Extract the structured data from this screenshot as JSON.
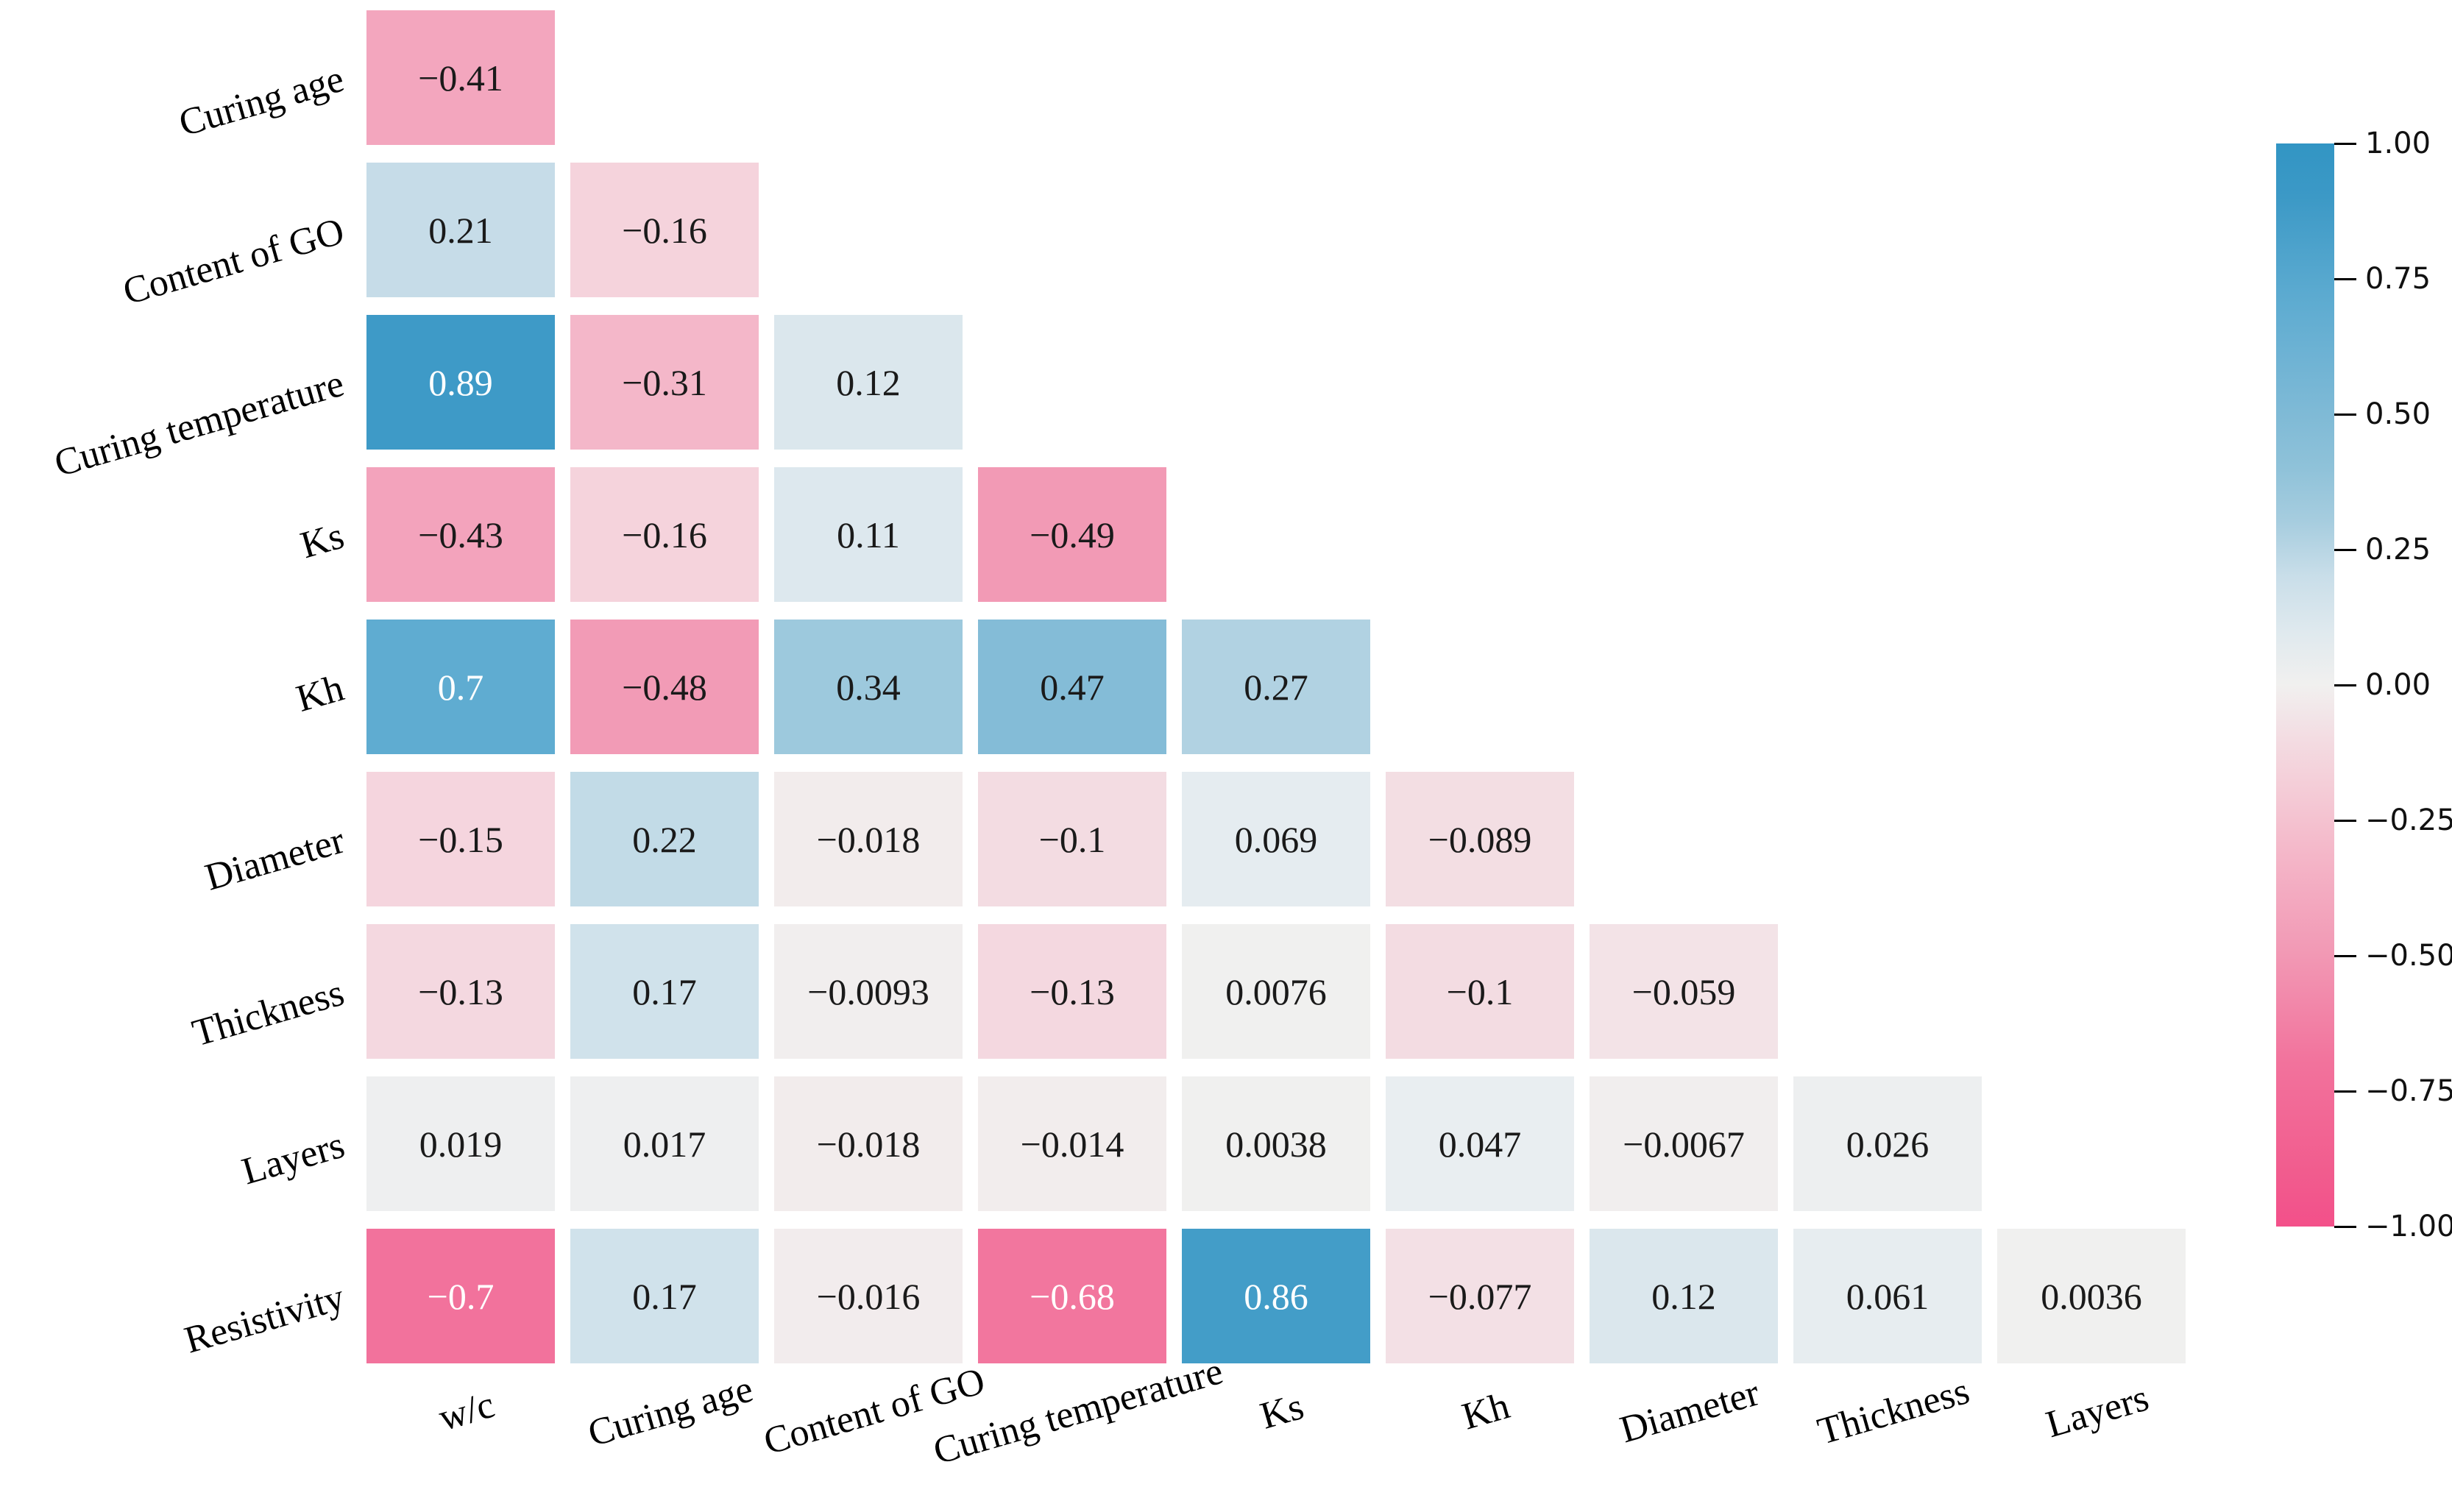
{
  "chart_data": {
    "type": "heatmap",
    "subtype": "lower-triangle-correlation-matrix",
    "title": "",
    "grid": false,
    "x_labels": [
      "w/c",
      "Curing age",
      "Content of GO",
      "Curing temperature",
      "Ks",
      "Kh",
      "Diameter",
      "Thickness",
      "Layers"
    ],
    "y_labels": [
      "Curing age",
      "Content of GO",
      "Curing temperature",
      "Ks",
      "Kh",
      "Diameter",
      "Thickness",
      "Layers",
      "Resistivity"
    ],
    "rows": [
      {
        "label": "Curing age",
        "values": [
          -0.41
        ],
        "display": [
          "−0.41"
        ]
      },
      {
        "label": "Content of GO",
        "values": [
          0.21,
          -0.16
        ],
        "display": [
          "0.21",
          "−0.16"
        ]
      },
      {
        "label": "Curing temperature",
        "values": [
          0.89,
          -0.31,
          0.12
        ],
        "display": [
          "0.89",
          "−0.31",
          "0.12"
        ]
      },
      {
        "label": "Ks",
        "values": [
          -0.43,
          -0.16,
          0.11,
          -0.49
        ],
        "display": [
          "−0.43",
          "−0.16",
          "0.11",
          "−0.49"
        ]
      },
      {
        "label": "Kh",
        "values": [
          0.7,
          -0.48,
          0.34,
          0.47,
          0.27
        ],
        "display": [
          "0.7",
          "−0.48",
          "0.34",
          "0.47",
          "0.27"
        ]
      },
      {
        "label": "Diameter",
        "values": [
          -0.15,
          0.22,
          -0.018,
          -0.1,
          0.069,
          -0.089
        ],
        "display": [
          "−0.15",
          "0.22",
          "−0.018",
          "−0.1",
          "0.069",
          "−0.089"
        ]
      },
      {
        "label": "Thickness",
        "values": [
          -0.13,
          0.17,
          -0.0093,
          -0.13,
          0.0076,
          -0.1,
          -0.059
        ],
        "display": [
          "−0.13",
          "0.17",
          "−0.0093",
          "−0.13",
          "0.0076",
          "−0.1",
          "−0.059"
        ]
      },
      {
        "label": "Layers",
        "values": [
          0.019,
          0.017,
          -0.018,
          -0.014,
          0.0038,
          0.047,
          -0.0067,
          0.026
        ],
        "display": [
          "0.019",
          "0.017",
          "−0.018",
          "−0.014",
          "0.0038",
          "0.047",
          "−0.0067",
          "0.026"
        ]
      },
      {
        "label": "Resistivity",
        "values": [
          -0.7,
          0.17,
          -0.016,
          -0.68,
          0.86,
          -0.077,
          0.12,
          0.061,
          0.0036
        ],
        "display": [
          "−0.7",
          "0.17",
          "−0.016",
          "−0.68",
          "0.86",
          "−0.077",
          "0.12",
          "0.061",
          "0.0036"
        ]
      }
    ],
    "colorbar": {
      "vmin": -1,
      "vmax": 1,
      "ticks": [
        {
          "v": 1,
          "label": "1.00"
        },
        {
          "v": 0.75,
          "label": "0.75"
        },
        {
          "v": 0.5,
          "label": "0.50"
        },
        {
          "v": 0.25,
          "label": "0.25"
        },
        {
          "v": 0,
          "label": "0.00"
        },
        {
          "v": -0.25,
          "label": "−0.25"
        },
        {
          "v": -0.5,
          "label": "−0.50"
        },
        {
          "v": -0.75,
          "label": "−0.75"
        },
        {
          "v": -1,
          "label": "−1.00"
        }
      ]
    },
    "palette": {
      "center": "#F1F0EF",
      "negative_stops": [
        [
          0,
          "#F1F0EF"
        ],
        [
          0.05,
          "#F3E4E8"
        ],
        [
          0.1,
          "#F3DCE2"
        ],
        [
          0.15,
          "#F5D5DE"
        ],
        [
          0.2,
          "#F4CBD6"
        ],
        [
          0.3,
          "#F4B9CA"
        ],
        [
          0.4,
          "#F3A8BF"
        ],
        [
          0.5,
          "#F298B4"
        ],
        [
          0.7,
          "#F2729C"
        ],
        [
          0.9,
          "#F15C8E"
        ],
        [
          1,
          "#F3508A"
        ]
      ],
      "positive_stops": [
        [
          0,
          "#F1F0EF"
        ],
        [
          0.05,
          "#E9EEF1"
        ],
        [
          0.1,
          "#DFE9EE"
        ],
        [
          0.15,
          "#D5E4EC"
        ],
        [
          0.2,
          "#C9DEE9"
        ],
        [
          0.3,
          "#A7CDDF"
        ],
        [
          0.4,
          "#8FC2D9"
        ],
        [
          0.5,
          "#7FBAD6"
        ],
        [
          0.7,
          "#5FACD1"
        ],
        [
          0.9,
          "#3C99C6"
        ],
        [
          1,
          "#3295C4"
        ]
      ],
      "text_dark": "#1a1a1a",
      "text_light": "#ffffff",
      "white_text_threshold": 0.6
    }
  }
}
